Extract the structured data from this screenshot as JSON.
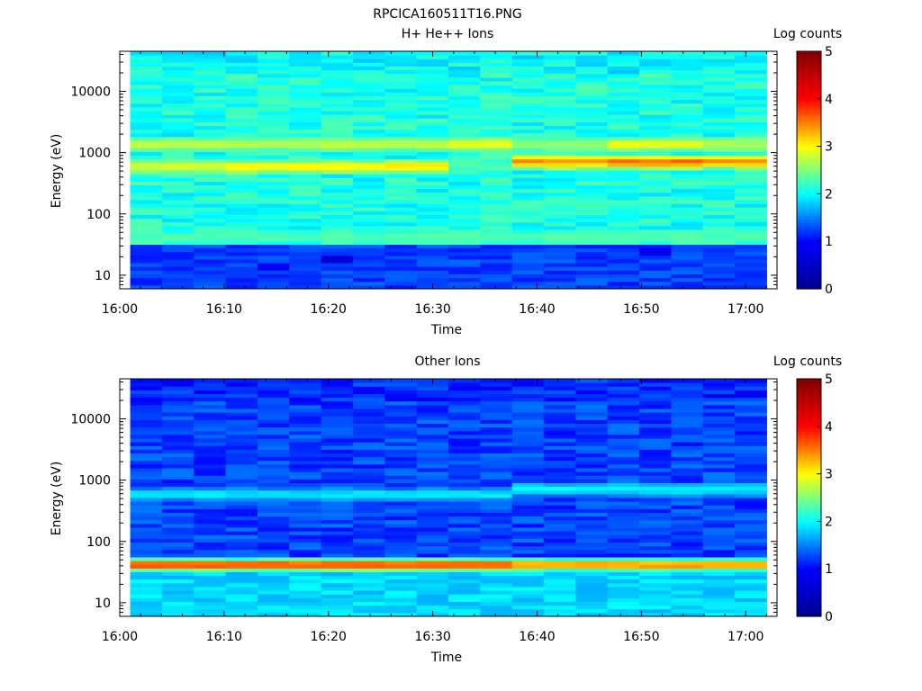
{
  "figure_title": "RPCICA160511T16.PNG",
  "chart_data": [
    {
      "type": "heatmap",
      "title": "H+ He++ Ions",
      "xlabel": "Time",
      "ylabel": "Energy (eV)",
      "colorbar_label": "Log counts",
      "x_ticks": [
        "16:00",
        "16:10",
        "16:20",
        "16:30",
        "16:40",
        "16:50",
        "17:00"
      ],
      "x_range": [
        "16:00",
        "17:03"
      ],
      "y_scale": "log",
      "y_ticks": [
        "10",
        "100",
        "1000",
        "10000"
      ],
      "y_range": [
        6,
        45000
      ],
      "colorbar_ticks": [
        "0",
        "1",
        "2",
        "3",
        "4",
        "5"
      ],
      "colorbar_range": [
        0,
        5
      ],
      "colormap": [
        "#00008f",
        "#0000ff",
        "#00ffff",
        "#ffff00",
        "#ff0000",
        "#800000"
      ],
      "background_level": 2.1,
      "bands": [
        {
          "energy_eV": 1380,
          "segments": [
            {
              "from": "16:01",
              "to": "16:33",
              "level": 2.75
            },
            {
              "from": "16:33",
              "to": "16:37",
              "level": 3.0
            },
            {
              "from": "16:37",
              "to": "16:46",
              "level": 2.6
            },
            {
              "from": "16:46",
              "to": "16:56",
              "level": 2.95
            },
            {
              "from": "16:56",
              "to": "17:02",
              "level": 2.7
            }
          ]
        },
        {
          "energy_eV": 600,
          "segments": [
            {
              "from": "16:01",
              "to": "16:10",
              "level": 2.85
            },
            {
              "from": "16:10",
              "to": "16:25",
              "level": 3.05
            },
            {
              "from": "16:25",
              "to": "16:30",
              "level": 3.15
            },
            {
              "from": "16:30",
              "to": "16:37",
              "level": 2.3
            }
          ]
        },
        {
          "energy_eV": 720,
          "segments": [
            {
              "from": "16:37",
              "to": "16:46",
              "level": 3.45
            },
            {
              "from": "16:46",
              "to": "16:56",
              "level": 3.6
            },
            {
              "from": "16:56",
              "to": "17:02",
              "level": 3.45
            }
          ]
        },
        {
          "energy_eV": 43,
          "segments": [
            {
              "from": "16:01",
              "to": "17:02",
              "level": 2.3
            }
          ]
        }
      ],
      "low_energy_level": 1.25,
      "dropouts": [
        {
          "time": "16:15",
          "energy_eV": 14,
          "level": 0.9
        },
        {
          "time": "16:22",
          "energy_eV": 19,
          "level": 0.7
        },
        {
          "time": "16:52",
          "energy_eV": 25,
          "level": 0.8
        }
      ]
    },
    {
      "type": "heatmap",
      "title": "Other Ions",
      "xlabel": "Time",
      "ylabel": "Energy (eV)",
      "colorbar_label": "Log counts",
      "x_ticks": [
        "16:00",
        "16:10",
        "16:20",
        "16:30",
        "16:40",
        "16:50",
        "17:00"
      ],
      "x_range": [
        "16:00",
        "17:03"
      ],
      "y_scale": "log",
      "y_ticks": [
        "10",
        "100",
        "1000",
        "10000"
      ],
      "y_range": [
        6,
        45000
      ],
      "colorbar_ticks": [
        "0",
        "1",
        "2",
        "3",
        "4",
        "5"
      ],
      "colorbar_range": [
        0,
        5
      ],
      "colormap": [
        "#00008f",
        "#0000ff",
        "#00ffff",
        "#ffff00",
        "#ff0000",
        "#800000"
      ],
      "background_level": 1.25,
      "bands": [
        {
          "energy_eV": 590,
          "segments": [
            {
              "from": "16:01",
              "to": "16:37",
              "level": 1.95
            }
          ]
        },
        {
          "energy_eV": 720,
          "segments": [
            {
              "from": "16:37",
              "to": "17:02",
              "level": 2.0
            }
          ]
        },
        {
          "energy_eV": 42,
          "segments": [
            {
              "from": "16:01",
              "to": "16:37",
              "level": 3.8
            },
            {
              "from": "16:37",
              "to": "17:02",
              "level": 3.5
            }
          ]
        }
      ],
      "low_energy_level": 1.85,
      "dropouts": []
    }
  ]
}
